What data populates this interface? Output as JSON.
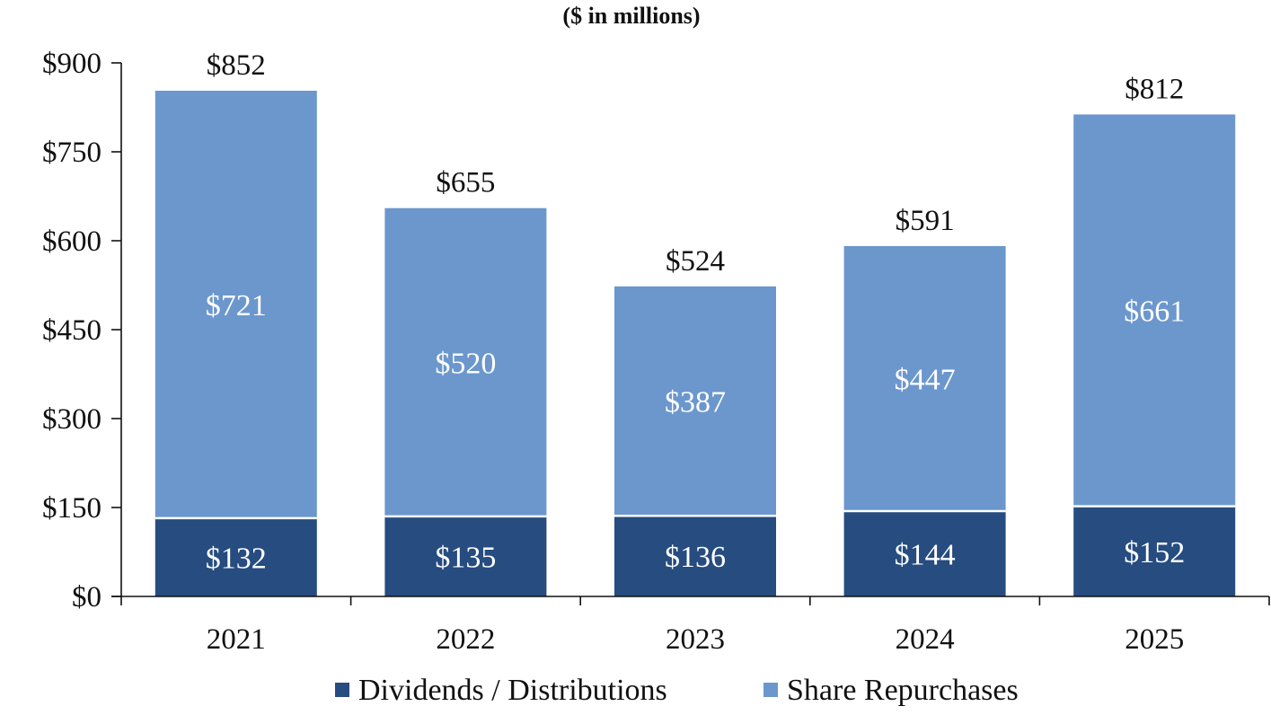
{
  "chart_data": {
    "type": "bar",
    "stacked": true,
    "subtitle": "($ in millions)",
    "categories": [
      "2021",
      "2022",
      "2023",
      "2024",
      "2025"
    ],
    "series": [
      {
        "name": "Dividends / Distributions",
        "values": [
          132,
          135,
          136,
          144,
          152
        ],
        "color": "#264c80",
        "labels": [
          "$132",
          "$135",
          "$136",
          "$144",
          "$152"
        ]
      },
      {
        "name": "Share Repurchases",
        "values": [
          721,
          520,
          387,
          447,
          661
        ],
        "color": "#6b97cd",
        "labels": [
          "$721",
          "$520",
          "$387",
          "$447",
          "$661"
        ]
      }
    ],
    "totals": [
      "$852",
      "$655",
      "$524",
      "$591",
      "$812"
    ],
    "ylim": [
      0,
      900
    ],
    "yticks": [
      0,
      150,
      300,
      450,
      600,
      750,
      900
    ],
    "ytick_labels": [
      "$0",
      "$150",
      "$300",
      "$450",
      "$600",
      "$750",
      "$900"
    ],
    "grid": false,
    "legend_position": "bottom"
  }
}
